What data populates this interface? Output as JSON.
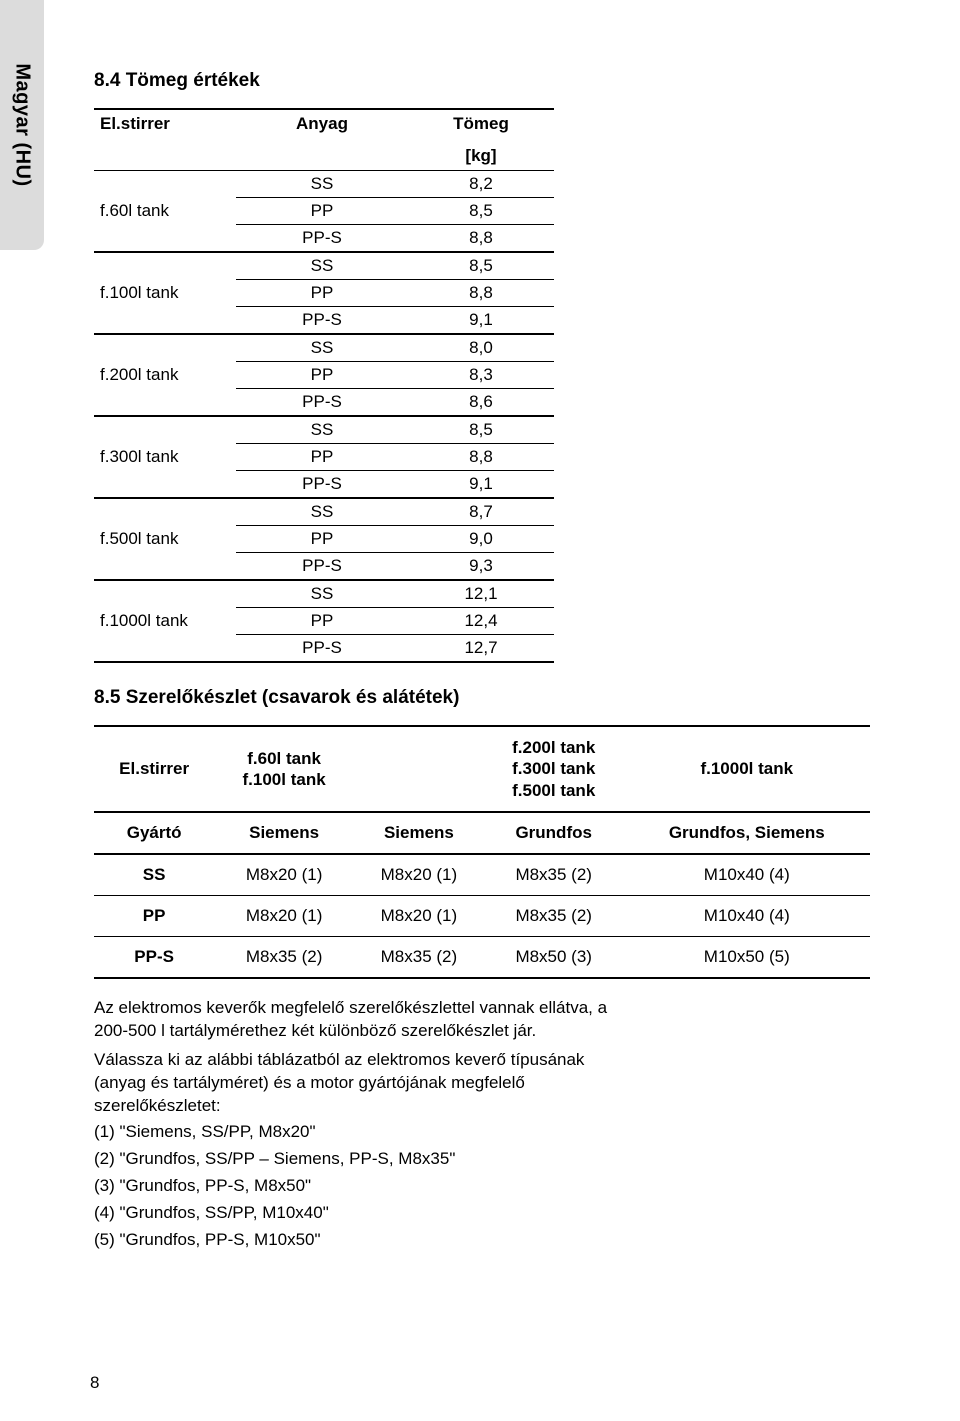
{
  "sidebar": {
    "language": "Magyar (HU)"
  },
  "section1": {
    "title": "8.4 Tömeg értékek",
    "columns": [
      "El.stirrer",
      "Anyag",
      "Tömeg"
    ],
    "unit": "[kg]",
    "groups": [
      {
        "label": "f.60l tank",
        "rows": [
          [
            "SS",
            "8,2"
          ],
          [
            "PP",
            "8,5"
          ],
          [
            "PP-S",
            "8,8"
          ]
        ]
      },
      {
        "label": "f.100l tank",
        "rows": [
          [
            "SS",
            "8,5"
          ],
          [
            "PP",
            "8,8"
          ],
          [
            "PP-S",
            "9,1"
          ]
        ]
      },
      {
        "label": "f.200l tank",
        "rows": [
          [
            "SS",
            "8,0"
          ],
          [
            "PP",
            "8,3"
          ],
          [
            "PP-S",
            "8,6"
          ]
        ]
      },
      {
        "label": "f.300l tank",
        "rows": [
          [
            "SS",
            "8,5"
          ],
          [
            "PP",
            "8,8"
          ],
          [
            "PP-S",
            "9,1"
          ]
        ]
      },
      {
        "label": "f.500l tank",
        "rows": [
          [
            "SS",
            "8,7"
          ],
          [
            "PP",
            "9,0"
          ],
          [
            "PP-S",
            "9,3"
          ]
        ]
      },
      {
        "label": "f.1000l tank",
        "rows": [
          [
            "SS",
            "12,1"
          ],
          [
            "PP",
            "12,4"
          ],
          [
            "PP-S",
            "12,7"
          ]
        ]
      }
    ]
  },
  "section2": {
    "title": "8.5 Szerelőkészlet (csavarok és alátétek)",
    "header": {
      "c0": "El.stirrer",
      "c1": "f.60l tank\nf.100l tank",
      "c2": "",
      "c3": "f.200l tank\nf.300l tank\nf.500l tank",
      "c4": "f.1000l tank"
    },
    "rows": [
      [
        "Gyártó",
        "Siemens",
        "Siemens",
        "Grundfos",
        "Grundfos, Siemens"
      ],
      [
        "SS",
        "M8x20 (1)",
        "M8x20 (1)",
        "M8x35 (2)",
        "M10x40 (4)"
      ],
      [
        "PP",
        "M8x20 (1)",
        "M8x20 (1)",
        "M8x35 (2)",
        "M10x40 (4)"
      ],
      [
        "PP-S",
        "M8x35 (2)",
        "M8x35 (2)",
        "M8x50 (3)",
        "M10x50 (5)"
      ]
    ]
  },
  "notes": {
    "p1": "Az elektromos keverők megfelelő szerelőkészlettel vannak ellátva, a 200-500 l tartálymérethez két különböző szerelőkészlet jár.",
    "p2": "Válassza ki az alábbi táblázatból az elektromos keverő típusának (anyag és tartályméret) és a motor gyártójának megfelelő szerelőkészletet:",
    "l1": "(1) \"Siemens, SS/PP, M8x20\"",
    "l2": "(2) \"Grundfos, SS/PP – Siemens, PP-S, M8x35\"",
    "l3": "(3) \"Grundfos, PP-S, M8x50\"",
    "l4": "(4) \"Grundfos, SS/PP, M10x40\"",
    "l5": "(5) \"Grundfos, PP-S, M10x50\""
  },
  "page_number": "8"
}
